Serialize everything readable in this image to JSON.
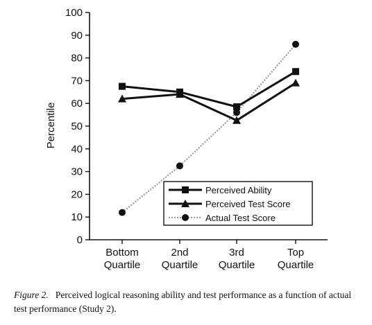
{
  "chart_data": {
    "type": "line",
    "ylabel": "Percentile",
    "xlabel": "",
    "ylim": [
      0,
      100
    ],
    "yticks": [
      "0",
      "10",
      "20",
      "30",
      "40",
      "50",
      "60",
      "70",
      "80",
      "90",
      "100"
    ],
    "categories": [
      [
        "Bottom",
        "Quartile"
      ],
      [
        "2nd",
        "Quartile"
      ],
      [
        "3rd",
        "Quartile"
      ],
      [
        "Top",
        "Quartile"
      ]
    ],
    "legend_position": "bottom-right",
    "series": [
      {
        "name": "Perceived Ability",
        "marker": "square",
        "line": "solid",
        "color": "#111111",
        "values": [
          67.5,
          65,
          58.5,
          74
        ]
      },
      {
        "name": "Perceived Test Score",
        "marker": "triangle",
        "line": "solid",
        "color": "#111111",
        "values": [
          62,
          64,
          52.5,
          69
        ]
      },
      {
        "name": "Actual Test Score",
        "marker": "circle",
        "line": "dotted",
        "color": "#9a9a9a",
        "values": [
          12,
          32.5,
          56,
          86
        ]
      }
    ]
  },
  "caption": {
    "figure_label": "Figure 2.",
    "text": "Perceived logical reasoning ability and test performance as a function of actual test performance (Study 2)."
  }
}
